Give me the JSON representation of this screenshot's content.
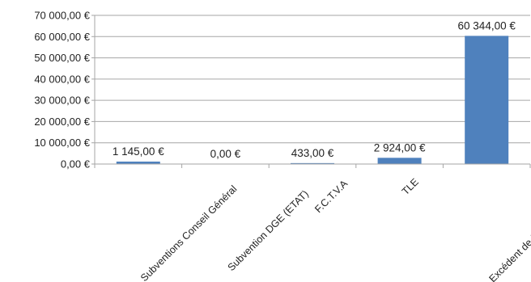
{
  "chart_data": {
    "type": "bar",
    "categories": [
      "Subventions Conseil Général",
      "Subvention DGE (ETAT)",
      "F.C.T.V.A",
      "TLE",
      "Excédent de fonctionnement..."
    ],
    "values": [
      1145,
      0,
      433,
      2924,
      60344
    ],
    "data_labels": [
      "1 145,00 €",
      "0,00 €",
      "433,00 €",
      "2 924,00 €",
      "60 344,00 €"
    ],
    "y_ticks": [
      0,
      10000,
      20000,
      30000,
      40000,
      50000,
      60000,
      70000
    ],
    "y_tick_labels": [
      "0,00 €",
      "10 000,00 €",
      "20 000,00 €",
      "30 000,00 €",
      "40 000,00 €",
      "50 000,00 €",
      "60 000,00 €",
      "70 000,00 €"
    ],
    "ylim": [
      0,
      70000
    ],
    "grid": true,
    "legend": "none",
    "bar_color": "#4F81BD",
    "grid_color": "#A6A6A6",
    "axis_color": "#A6A6A6"
  }
}
